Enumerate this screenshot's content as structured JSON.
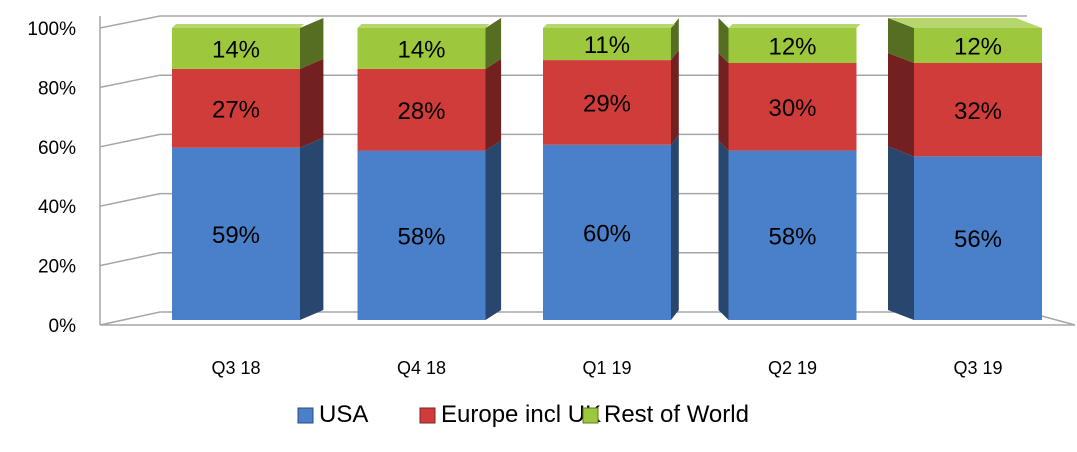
{
  "chart_data": {
    "type": "bar",
    "stacked": true,
    "percent_stacked": true,
    "three_d": true,
    "categories": [
      "Q3 18",
      "Q4 18",
      "Q1 19",
      "Q2 19",
      "Q3 19"
    ],
    "series": [
      {
        "name": "USA",
        "values": [
          59,
          58,
          60,
          58,
          56
        ],
        "labels": [
          "59%",
          "58%",
          "60%",
          "58%",
          "56%"
        ],
        "color": "#4a7fc9"
      },
      {
        "name": "Europe incl UK",
        "values": [
          27,
          28,
          29,
          30,
          32
        ],
        "labels": [
          "27%",
          "28%",
          "29%",
          "30%",
          "32%"
        ],
        "color": "#cf3c3a"
      },
      {
        "name": "Rest of World",
        "values": [
          14,
          14,
          11,
          12,
          12
        ],
        "labels": [
          "14%",
          "14%",
          "11%",
          "12%",
          "12%"
        ],
        "color": "#9dc83d"
      }
    ],
    "yticks": [
      "0%",
      "20%",
      "40%",
      "60%",
      "80%",
      "100%"
    ],
    "ylim": [
      0,
      100
    ],
    "grid": true,
    "legend_position": "bottom"
  }
}
